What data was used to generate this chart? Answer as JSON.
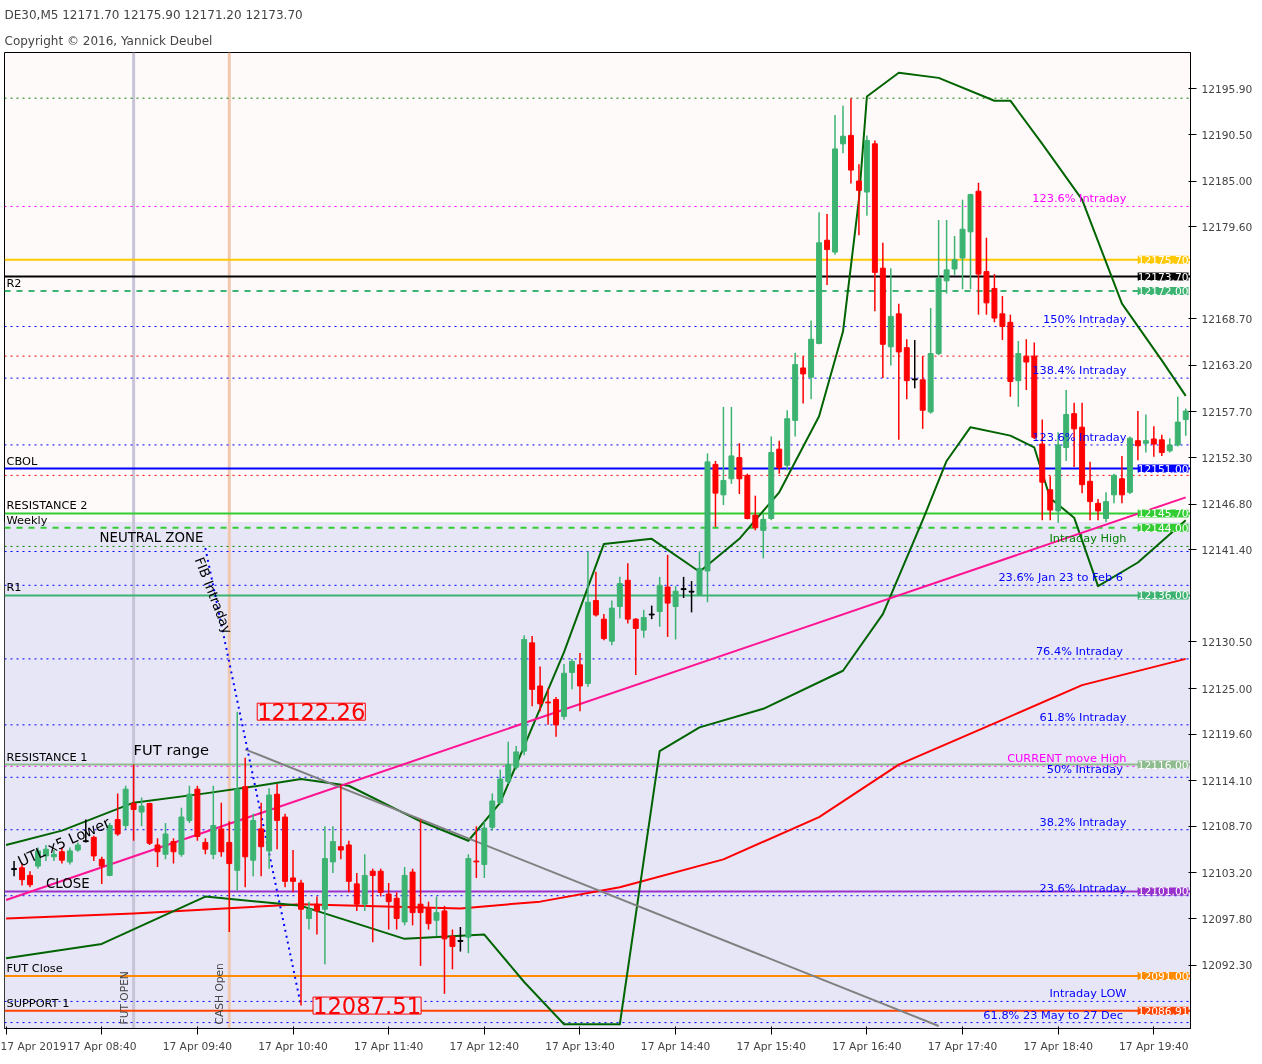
{
  "chart_data": {
    "type": "candlestick",
    "title": "DE30,M5  12171.70 12175.90 12171.20 12173.70",
    "subtitle": "Copyright © 2016, Yannick Deubel",
    "xlim": [
      "2019-04-17T07:39",
      "2019-04-17T20:03"
    ],
    "ylim": [
      12084.8,
      12200.2
    ],
    "xticks": [
      {
        "value": "2019-04-17T07:40",
        "label": "17 Apr 2019"
      },
      {
        "value": "2019-04-17T08:40",
        "label": "17 Apr 08:40"
      },
      {
        "value": "2019-04-17T09:40",
        "label": "17 Apr 09:40"
      },
      {
        "value": "2019-04-17T10:40",
        "label": "17 Apr 10:40"
      },
      {
        "value": "2019-04-17T11:40",
        "label": "17 Apr 11:40"
      },
      {
        "value": "2019-04-17T12:40",
        "label": "17 Apr 12:40"
      },
      {
        "value": "2019-04-17T13:40",
        "label": "17 Apr 13:40"
      },
      {
        "value": "2019-04-17T14:40",
        "label": "17 Apr 14:40"
      },
      {
        "value": "2019-04-17T15:40",
        "label": "17 Apr 15:40"
      },
      {
        "value": "2019-04-17T16:40",
        "label": "17 Apr 16:40"
      },
      {
        "value": "2019-04-17T17:40",
        "label": "17 Apr 17:40"
      },
      {
        "value": "2019-04-17T18:40",
        "label": "17 Apr 18:40"
      },
      {
        "value": "2019-04-17T19:40",
        "label": "17 Apr 19:40"
      }
    ],
    "yticks": [
      {
        "value": 12195.9,
        "label": "12195.90"
      },
      {
        "value": 12190.5,
        "label": "12190.50"
      },
      {
        "value": 12185.0,
        "label": "12185.00"
      },
      {
        "value": 12179.6,
        "label": "12179.60"
      },
      {
        "value": 12168.7,
        "label": "12168.70"
      },
      {
        "value": 12163.2,
        "label": "12163.20"
      },
      {
        "value": 12157.7,
        "label": "12157.70"
      },
      {
        "value": 12152.3,
        "label": "12152.30"
      },
      {
        "value": 12146.8,
        "label": "12146.80"
      },
      {
        "value": 12141.4,
        "label": "12141.40"
      },
      {
        "value": 12130.5,
        "label": "12130.50"
      },
      {
        "value": 12125.0,
        "label": "12125.00"
      },
      {
        "value": 12119.6,
        "label": "12119.60"
      },
      {
        "value": 12114.1,
        "label": "12114.10"
      },
      {
        "value": 12108.7,
        "label": "12108.70"
      },
      {
        "value": 12103.2,
        "label": "12103.20"
      },
      {
        "value": 12097.8,
        "label": "12097.80"
      },
      {
        "value": 12092.3,
        "label": "12092.30"
      }
    ],
    "bands": [
      {
        "axis": "y",
        "from": 12084.8,
        "to": 12144.7,
        "label": "NEUTRAL ZONE",
        "color": "#e6e6f7"
      }
    ],
    "ref_lines": [
      {
        "axis": "x",
        "value": "2019-04-17T09:00",
        "label": "FUT OPEN",
        "color": "#c8c4d8",
        "line_style": "solid"
      },
      {
        "axis": "x",
        "value": "2019-04-17T10:00",
        "label": "CASH Open",
        "color": "#f0c8b0",
        "line_style": "solid"
      },
      {
        "axis": "y",
        "value": 12194.8,
        "color": "#008000",
        "line_style": "dotted"
      },
      {
        "axis": "y",
        "value": 12182.0,
        "label": "123.6% Intraday",
        "color": "#ff00ff",
        "line_style": "dotted"
      },
      {
        "axis": "y",
        "value": 12175.7,
        "label": "12175.70",
        "color": "#ffc800",
        "line_style": "solid"
      },
      {
        "axis": "y",
        "value": 12173.7,
        "label": "12173.70",
        "color": "#000000",
        "line_style": "solid"
      },
      {
        "axis": "y",
        "value": 12172.0,
        "label": "12172.00",
        "color": "#3cb371",
        "line_style": "dashed"
      },
      {
        "axis": "y",
        "value": 12167.8,
        "label": "150% Intraday",
        "color": "#0000ff",
        "line_style": "dotted"
      },
      {
        "axis": "y",
        "value": 12164.3,
        "color": "#ff0000",
        "line_style": "dotted"
      },
      {
        "axis": "y",
        "value": 12161.7,
        "label": "138.4% Intraday",
        "color": "#0000ff",
        "line_style": "dotted"
      },
      {
        "axis": "y",
        "value": 12153.8,
        "label": "123.6% Intraday",
        "color": "#0000ff",
        "line_style": "dotted"
      },
      {
        "axis": "y",
        "value": 12151.0,
        "label": "12151.00",
        "color": "#0000ff",
        "line_style": "solid"
      },
      {
        "axis": "y",
        "value": 12150.2,
        "color": "#ff0000",
        "line_style": "dotted"
      },
      {
        "axis": "y",
        "value": 12145.7,
        "label": "12145.70",
        "color": "#32cd32",
        "line_style": "solid"
      },
      {
        "axis": "y",
        "value": 12144.0,
        "label": "12144.00",
        "color": "#32cd32",
        "line_style": "dashed"
      },
      {
        "axis": "y",
        "value": 12141.8,
        "label": "Intraday High",
        "color": "#008000",
        "line_style": "dotted"
      },
      {
        "axis": "y",
        "value": 12141.2,
        "color": "#0000ff",
        "line_style": "dotted"
      },
      {
        "axis": "y",
        "value": 12137.2,
        "label": "23.6%  Jan 23 to Feb 6",
        "color": "#0000ff",
        "line_style": "dotted"
      },
      {
        "axis": "y",
        "value": 12136.0,
        "label": "12136.00",
        "color": "#3cb371",
        "line_style": "solid"
      },
      {
        "axis": "y",
        "value": 12128.5,
        "label": "76.4%  Intraday",
        "color": "#0000ff",
        "line_style": "dotted"
      },
      {
        "axis": "y",
        "value": 12120.7,
        "label": "61.8% Intraday",
        "color": "#0000ff",
        "line_style": "dotted"
      },
      {
        "axis": "y",
        "value": 12116.0,
        "label": "12116.00",
        "color": "#8fbc8f",
        "line_style": "solid"
      },
      {
        "axis": "y",
        "value": 12115.8,
        "label": "CURRENT move High",
        "color": "#ff00ff",
        "line_style": "dotted"
      },
      {
        "axis": "y",
        "value": 12114.5,
        "label": "50%  Intraday",
        "color": "#0000ff",
        "line_style": "dotted"
      },
      {
        "axis": "y",
        "value": 12108.3,
        "label": "38.2% Intraday",
        "color": "#0000ff",
        "line_style": "dotted"
      },
      {
        "axis": "y",
        "value": 12101.0,
        "label": "12101.00",
        "color": "#9932cc",
        "line_style": "solid"
      },
      {
        "axis": "y",
        "value": 12100.5,
        "label": "23.6% Intraday",
        "color": "#0000ff",
        "line_style": "dotted"
      },
      {
        "axis": "y",
        "value": 12091.0,
        "label": "12091.00",
        "color": "#ff8c00",
        "line_style": "solid"
      },
      {
        "axis": "y",
        "value": 12088.0,
        "label": "Intraday LOW",
        "color": "#0000ff",
        "line_style": "dotted"
      },
      {
        "axis": "y",
        "value": 12086.91,
        "label": "12086.91",
        "color": "#ff4500",
        "line_style": "solid"
      },
      {
        "axis": "y",
        "value": 12085.5,
        "label": "61.8%  23 May to 27 Dec",
        "color": "#0000ff",
        "line_style": "dotted"
      }
    ],
    "annotations": [
      {
        "text": "12122.26",
        "x": "2019-04-17T10:10",
        "y": 12122.26
      },
      {
        "text": "12087.51",
        "x": "2019-04-17T10:45",
        "y": 12087.51
      },
      {
        "text": "FIB Intraday",
        "x": "2019-04-17T09:50",
        "y": 12136.0
      },
      {
        "text": "FUT range",
        "x": "2019-04-17T09:00",
        "y": 12116.8
      },
      {
        "text": "UTL x5 Lower",
        "x": "2019-04-17T07:50",
        "y": 12103.6
      },
      {
        "text": "R2",
        "y": 12172.0
      },
      {
        "text": "CBOL",
        "y": 12151.0
      },
      {
        "text": "RESISTANCE 2",
        "y": 12145.7
      },
      {
        "text": "Weekly",
        "y": 12144.0
      },
      {
        "text": "R1",
        "y": 12136.0
      },
      {
        "text": "RESISTANCE 1",
        "y": 12116.0
      },
      {
        "text": "CLOSE",
        "x": "2019-04-17T08:05",
        "y": 12101.0
      },
      {
        "text": "FUT Close",
        "y": 12091.0
      },
      {
        "text": "SUPPORT 1",
        "y": 12086.91
      }
    ],
    "series": [
      {
        "type": "line",
        "color": "#ff0000",
        "x": [
          "2019-04-17T07:40",
          "2019-04-17T09:00",
          "2019-04-17T10:45",
          "2019-04-17T12:25",
          "2019-04-17T13:15",
          "2019-04-17T14:05",
          "2019-04-17T15:10",
          "2019-04-17T16:10",
          "2019-04-17T17:00",
          "2019-04-17T18:05",
          "2019-04-17T18:55",
          "2019-04-17T20:00"
        ],
        "values": [
          12097.8,
          12098.4,
          12099.5,
          12099.0,
          12099.8,
          12101.5,
          12104.8,
          12109.8,
          12116.0,
          12121.3,
          12125.4,
          12128.5
        ]
      },
      {
        "type": "line",
        "color": "#006400",
        "x": [
          "2019-04-17T07:40",
          "2019-04-17T08:15",
          "2019-04-17T09:00",
          "2019-04-17T09:45",
          "2019-04-17T10:15",
          "2019-04-17T10:45",
          "2019-04-17T11:15",
          "2019-04-17T12:00",
          "2019-04-17T12:30",
          "2019-04-17T12:50",
          "2019-04-17T13:30",
          "2019-04-17T13:55",
          "2019-04-17T14:25",
          "2019-04-17T14:55",
          "2019-04-17T15:20",
          "2019-04-17T15:45",
          "2019-04-17T16:10",
          "2019-04-17T16:25",
          "2019-04-17T16:35",
          "2019-04-17T16:40",
          "2019-04-17T17:00",
          "2019-04-17T17:25",
          "2019-04-17T18:00",
          "2019-04-17T18:10",
          "2019-04-17T18:30",
          "2019-04-17T18:55",
          "2019-04-17T19:20",
          "2019-04-17T19:45",
          "2019-04-17T20:00"
        ],
        "values": [
          12106.5,
          12108.2,
          12111.5,
          12112.6,
          12113.4,
          12114.3,
          12113.5,
          12109.3,
          12107.0,
          12111.5,
          12129.3,
          12142.1,
          12142.7,
          12138.8,
          12142.7,
          12148.2,
          12157.2,
          12167.2,
          12182.8,
          12195.0,
          12197.8,
          12197.2,
          12194.5,
          12194.5,
          12189.4,
          12182.8,
          12170.5,
          12163.8,
          12159.6
        ]
      },
      {
        "type": "line",
        "color": "#006400",
        "x": [
          "2019-04-17T07:40",
          "2019-04-17T08:40",
          "2019-04-17T09:45",
          "2019-04-17T10:45",
          "2019-04-17T11:50",
          "2019-04-17T12:40",
          "2019-04-17T13:05",
          "2019-04-17T13:30",
          "2019-04-17T14:05",
          "2019-04-17T14:30",
          "2019-04-17T14:55",
          "2019-04-17T15:35",
          "2019-04-17T16:25",
          "2019-04-17T16:50",
          "2019-04-17T17:15",
          "2019-04-17T17:30",
          "2019-04-17T17:45",
          "2019-04-17T18:10",
          "2019-04-17T18:25",
          "2019-04-17T18:35",
          "2019-04-17T18:50",
          "2019-04-17T19:05",
          "2019-04-17T19:30",
          "2019-04-17T20:00"
        ],
        "values": [
          12093.1,
          12094.8,
          12100.4,
          12099.3,
          12095.4,
          12095.9,
          12090.3,
          12085.3,
          12085.3,
          12117.6,
          12120.4,
          12122.6,
          12127.1,
          12133.8,
          12144.9,
          12151.9,
          12155.9,
          12154.9,
          12153.5,
          12147.5,
          12145.2,
          12137.1,
          12139.9,
          12144.9
        ]
      },
      {
        "type": "line",
        "color": "#ff1493",
        "x": [
          "2019-04-17T07:40",
          "2019-04-17T20:00"
        ],
        "values": [
          12100.0,
          12147.6
        ]
      },
      {
        "type": "line",
        "color": "#808080",
        "x": [
          "2019-04-17T10:10",
          "2019-04-17T17:25"
        ],
        "values": [
          12117.8,
          12085.1
        ]
      },
      {
        "type": "line",
        "color": "#0000ff",
        "line_style": "dotted",
        "x": [
          "2019-04-17T09:45",
          "2019-04-17T10:45"
        ],
        "values": [
          12141.6,
          12087.5
        ]
      },
      {
        "x": [
          "2019-04-17T07:45",
          "2019-04-17T07:50",
          "2019-04-17T07:55",
          "2019-04-17T08:00",
          "2019-04-17T08:05",
          "2019-04-17T08:10",
          "2019-04-17T08:15",
          "2019-04-17T08:20",
          "2019-04-17T08:25",
          "2019-04-17T08:30",
          "2019-04-17T08:35",
          "2019-04-17T08:40",
          "2019-04-17T08:45",
          "2019-04-17T08:50",
          "2019-04-17T08:55",
          "2019-04-17T09:00",
          "2019-04-17T09:05",
          "2019-04-17T09:10",
          "2019-04-17T09:15",
          "2019-04-17T09:20",
          "2019-04-17T09:25",
          "2019-04-17T09:30",
          "2019-04-17T09:35",
          "2019-04-17T09:40",
          "2019-04-17T09:45",
          "2019-04-17T09:50",
          "2019-04-17T09:55",
          "2019-04-17T10:00",
          "2019-04-17T10:05",
          "2019-04-17T10:10",
          "2019-04-17T10:15",
          "2019-04-17T10:20",
          "2019-04-17T10:25",
          "2019-04-17T10:30",
          "2019-04-17T10:35",
          "2019-04-17T10:40",
          "2019-04-17T10:45",
          "2019-04-17T10:50",
          "2019-04-17T10:55",
          "2019-04-17T11:00",
          "2019-04-17T11:05",
          "2019-04-17T11:10",
          "2019-04-17T11:15",
          "2019-04-17T11:20",
          "2019-04-17T11:25",
          "2019-04-17T11:30",
          "2019-04-17T11:35",
          "2019-04-17T11:40",
          "2019-04-17T11:45",
          "2019-04-17T11:50",
          "2019-04-17T11:55",
          "2019-04-17T12:00",
          "2019-04-17T12:05",
          "2019-04-17T12:10",
          "2019-04-17T12:15",
          "2019-04-17T12:20",
          "2019-04-17T12:25",
          "2019-04-17T12:30",
          "2019-04-17T12:35",
          "2019-04-17T12:40",
          "2019-04-17T12:45",
          "2019-04-17T12:50",
          "2019-04-17T12:55",
          "2019-04-17T13:00",
          "2019-04-17T13:05",
          "2019-04-17T13:10",
          "2019-04-17T13:15",
          "2019-04-17T13:20",
          "2019-04-17T13:25",
          "2019-04-17T13:30",
          "2019-04-17T13:35",
          "2019-04-17T13:40",
          "2019-04-17T13:45",
          "2019-04-17T13:50",
          "2019-04-17T13:55",
          "2019-04-17T14:00",
          "2019-04-17T14:05",
          "2019-04-17T14:10",
          "2019-04-17T14:15",
          "2019-04-17T14:20",
          "2019-04-17T14:25",
          "2019-04-17T14:30",
          "2019-04-17T14:35",
          "2019-04-17T14:40",
          "2019-04-17T14:45",
          "2019-04-17T14:50",
          "2019-04-17T14:55",
          "2019-04-17T15:00",
          "2019-04-17T15:05",
          "2019-04-17T15:10",
          "2019-04-17T15:15",
          "2019-04-17T15:20",
          "2019-04-17T15:25",
          "2019-04-17T15:30",
          "2019-04-17T15:35",
          "2019-04-17T15:40",
          "2019-04-17T15:45",
          "2019-04-17T15:50",
          "2019-04-17T15:55",
          "2019-04-17T16:00",
          "2019-04-17T16:05",
          "2019-04-17T16:10",
          "2019-04-17T16:15",
          "2019-04-17T16:20",
          "2019-04-17T16:25",
          "2019-04-17T16:30",
          "2019-04-17T16:35",
          "2019-04-17T16:40",
          "2019-04-17T16:45",
          "2019-04-17T16:50",
          "2019-04-17T16:55",
          "2019-04-17T17:00",
          "2019-04-17T17:05",
          "2019-04-17T17:10",
          "2019-04-17T17:15",
          "2019-04-17T17:20",
          "2019-04-17T17:25",
          "2019-04-17T17:30",
          "2019-04-17T17:35",
          "2019-04-17T17:40",
          "2019-04-17T17:45",
          "2019-04-17T17:50",
          "2019-04-17T17:55",
          "2019-04-17T18:00",
          "2019-04-17T18:05",
          "2019-04-17T18:10",
          "2019-04-17T18:15",
          "2019-04-17T18:20",
          "2019-04-17T18:25",
          "2019-04-17T18:30",
          "2019-04-17T18:35",
          "2019-04-17T18:40",
          "2019-04-17T18:45",
          "2019-04-17T18:50",
          "2019-04-17T18:55",
          "2019-04-17T19:00",
          "2019-04-17T19:05",
          "2019-04-17T19:10",
          "2019-04-17T19:15",
          "2019-04-17T19:20",
          "2019-04-17T19:25",
          "2019-04-17T19:30",
          "2019-04-17T19:35",
          "2019-04-17T19:40",
          "2019-04-17T19:45",
          "2019-04-17T19:50",
          "2019-04-17T19:55",
          "2019-04-17T20:00"
        ],
        "ohlc": [
          [
            12103.7,
            12104.6,
            12102.8,
            12103.6
          ],
          [
            12103.8,
            12104.3,
            12101.7,
            12102.4
          ],
          [
            12102.9,
            12103.4,
            12101.5,
            12101.8
          ],
          [
            12104.0,
            12106.2,
            12103.7,
            12105.8
          ],
          [
            12105.2,
            12106.5,
            12104.6,
            12106.0
          ],
          [
            12105.1,
            12105.9,
            12104.6,
            12105.4
          ],
          [
            12105.7,
            12106.2,
            12104.3,
            12104.7
          ],
          [
            12104.5,
            12106.2,
            12104.2,
            12105.8
          ],
          [
            12105.9,
            12106.8,
            12105.7,
            12106.5
          ],
          [
            12107.0,
            12109.5,
            12106.8,
            12106.9
          ],
          [
            12107.4,
            12107.6,
            12104.6,
            12105.2
          ],
          [
            12104.8,
            12105.1,
            12101.9,
            12104.0
          ],
          [
            12102.9,
            12109.1,
            12102.8,
            12108.8
          ],
          [
            12109.5,
            12112.6,
            12107.6,
            12107.8
          ],
          [
            12108.8,
            12113.5,
            12108.4,
            12113.1
          ],
          [
            12111.4,
            12116.0,
            12107.0,
            12110.7
          ],
          [
            12110.4,
            12112.1,
            12108.7,
            12111.1
          ],
          [
            12111.4,
            12111.5,
            12106.5,
            12106.7
          ],
          [
            12106.5,
            12107.3,
            12103.9,
            12105.7
          ],
          [
            12105.4,
            12109.1,
            12104.8,
            12107.8
          ],
          [
            12106.9,
            12107.3,
            12104.3,
            12105.7
          ],
          [
            12105.4,
            12110.9,
            12105.1,
            12109.8
          ],
          [
            12109.4,
            12113.5,
            12109.1,
            12112.5
          ],
          [
            12113.1,
            12113.5,
            12107.0,
            12107.5
          ],
          [
            12106.8,
            12107.3,
            12105.4,
            12106.0
          ],
          [
            12105.4,
            12113.5,
            12104.8,
            12108.8
          ],
          [
            12108.4,
            12111.5,
            12105.1,
            12105.7
          ],
          [
            12106.8,
            12109.3,
            12096.2,
            12104.3
          ],
          [
            12103.5,
            12122.26,
            12101.1,
            12113.1
          ],
          [
            12113.4,
            12116.8,
            12101.5,
            12105.1
          ],
          [
            12104.7,
            12110.2,
            12102.8,
            12109.4
          ],
          [
            12108.4,
            12111.5,
            12102.8,
            12106.3
          ],
          [
            12105.8,
            12113.2,
            12103.7,
            12112.4
          ],
          [
            12112.5,
            12113.7,
            12106.0,
            12109.4
          ],
          [
            12109.8,
            12110.2,
            12101.5,
            12102.2
          ],
          [
            12102.6,
            12105.9,
            12100.9,
            12102.2
          ],
          [
            12102.0,
            12102.4,
            12087.51,
            12098.9
          ],
          [
            12097.8,
            12099.8,
            12096.5,
            12098.9
          ],
          [
            12099.5,
            12100.4,
            12095.9,
            12098.7
          ],
          [
            12098.9,
            12108.7,
            12092.4,
            12104.9
          ],
          [
            12104.5,
            12108.7,
            12103.2,
            12106.9
          ],
          [
            12106.3,
            12113.6,
            12104.8,
            12105.9
          ],
          [
            12106.5,
            12107.0,
            12100.9,
            12102.2
          ],
          [
            12101.9,
            12103.2,
            12098.7,
            12099.5
          ],
          [
            12099.5,
            12105.4,
            12098.7,
            12102.9
          ],
          [
            12103.4,
            12103.7,
            12095.0,
            12102.9
          ],
          [
            12103.4,
            12103.7,
            12100.4,
            12100.9
          ],
          [
            12100.7,
            12102.0,
            12096.5,
            12099.8
          ],
          [
            12100.2,
            12100.9,
            12096.5,
            12097.8
          ],
          [
            12097.4,
            12103.9,
            12097.0,
            12102.9
          ],
          [
            12103.3,
            12103.7,
            12097.0,
            12098.5
          ],
          [
            12099.5,
            12109.5,
            12092.2,
            12098.5
          ],
          [
            12099.0,
            12099.8,
            12096.5,
            12097.2
          ],
          [
            12097.6,
            12100.4,
            12095.7,
            12098.5
          ],
          [
            12098.7,
            12099.3,
            12088.9,
            12095.4
          ],
          [
            12095.7,
            12096.5,
            12091.8,
            12094.5
          ],
          [
            12095.2,
            12096.8,
            12093.9,
            12095.1
          ],
          [
            12095.6,
            12105.4,
            12093.7,
            12104.9
          ],
          [
            12104.6,
            12108.7,
            12102.6,
            12104.5
          ],
          [
            12104.2,
            12109.3,
            12102.6,
            12108.5
          ],
          [
            12108.6,
            12112.6,
            12108.2,
            12111.7
          ],
          [
            12111.5,
            12115.4,
            12111.3,
            12114.3
          ],
          [
            12114.0,
            12118.7,
            12113.7,
            12116.0
          ],
          [
            12115.7,
            12118.2,
            12115.4,
            12117.5
          ],
          [
            12117.6,
            12131.3,
            12117.1,
            12130.8
          ],
          [
            12130.4,
            12131.2,
            12122.9,
            12124.9
          ],
          [
            12125.3,
            12127.6,
            12122.3,
            12123.2
          ],
          [
            12123.4,
            12125.0,
            12120.7,
            12123.3
          ],
          [
            12123.7,
            12124.0,
            12119.3,
            12120.7
          ],
          [
            12121.7,
            12127.9,
            12121.3,
            12126.8
          ],
          [
            12126.9,
            12128.5,
            12124.9,
            12128.2
          ],
          [
            12127.8,
            12129.2,
            12122.3,
            12125.3
          ],
          [
            12125.6,
            12141.2,
            12125.2,
            12135.2
          ],
          [
            12135.4,
            12138.8,
            12133.5,
            12133.7
          ],
          [
            12133.2,
            12133.8,
            12130.7,
            12130.9
          ],
          [
            12130.6,
            12135.4,
            12130.1,
            12134.5
          ],
          [
            12134.7,
            12138.2,
            12133.3,
            12137.4
          ],
          [
            12137.8,
            12139.8,
            12132.7,
            12133.2
          ],
          [
            12133.2,
            12133.3,
            12126.6,
            12132.1
          ],
          [
            12131.9,
            12134.3,
            12131.0,
            12133.4
          ],
          [
            12133.8,
            12134.8,
            12133.2,
            12133.7
          ],
          [
            12134.1,
            12138.2,
            12132.3,
            12137.2
          ],
          [
            12137.0,
            12140.8,
            12131.1,
            12135.1
          ],
          [
            12134.7,
            12137.1,
            12130.8,
            12136.5
          ],
          [
            12136.8,
            12138.2,
            12135.7,
            12136.7
          ],
          [
            12136.5,
            12137.7,
            12134.0,
            12136.4
          ],
          [
            12136.1,
            12141.2,
            12136.0,
            12139.2
          ],
          [
            12138.9,
            12152.8,
            12135.2,
            12151.8
          ],
          [
            12151.5,
            12151.9,
            12144.1,
            12148.1
          ],
          [
            12147.9,
            12158.3,
            12146.7,
            12149.6
          ],
          [
            12149.8,
            12158.3,
            12149.2,
            12152.5
          ],
          [
            12152.3,
            12154.0,
            12148.0,
            12149.8
          ],
          [
            12150.2,
            12150.4,
            12145.0,
            12145.1
          ],
          [
            12145.5,
            12147.8,
            12143.7,
            12144.0
          ],
          [
            12143.7,
            12145.6,
            12140.4,
            12145.0
          ],
          [
            12145.1,
            12154.8,
            12144.9,
            12152.9
          ],
          [
            12153.3,
            12154.3,
            12150.4,
            12151.1
          ],
          [
            12151.4,
            12157.9,
            12150.8,
            12156.9
          ],
          [
            12156.7,
            12164.7,
            12154.8,
            12163.3
          ],
          [
            12162.9,
            12164.3,
            12158.7,
            12162.2
          ],
          [
            12161.8,
            12168.5,
            12159.2,
            12166.3
          ],
          [
            12165.8,
            12181.3,
            12165.7,
            12177.7
          ],
          [
            12178.0,
            12181.1,
            12172.7,
            12176.9
          ],
          [
            12176.6,
            12192.8,
            12176.3,
            12188.8
          ],
          [
            12189.4,
            12193.9,
            12188.3,
            12190.3
          ],
          [
            12190.4,
            12194.8,
            12184.7,
            12186.3
          ],
          [
            12185.0,
            12187.0,
            12178.6,
            12183.9
          ],
          [
            12183.7,
            12190.4,
            12180.9,
            12189.8
          ],
          [
            12189.4,
            12189.8,
            12169.6,
            12174.2
          ],
          [
            12174.7,
            12177.7,
            12161.7,
            12165.7
          ],
          [
            12165.4,
            12174.7,
            12163.2,
            12169.0
          ],
          [
            12169.3,
            12170.5,
            12154.4,
            12164.8
          ],
          [
            12165.3,
            12166.3,
            12159.2,
            12161.4
          ],
          [
            12161.6,
            12166.2,
            12160.5,
            12161.5
          ],
          [
            12161.5,
            12164.3,
            12155.7,
            12157.9
          ],
          [
            12157.7,
            12170.0,
            12157.5,
            12164.6
          ],
          [
            12164.6,
            12180.4,
            12164.4,
            12173.5
          ],
          [
            12173.2,
            12180.4,
            12171.7,
            12174.5
          ],
          [
            12174.6,
            12178.5,
            12173.9,
            12175.7
          ],
          [
            12175.9,
            12182.8,
            12172.2,
            12179.3
          ],
          [
            12179.0,
            12183.5,
            12172.2,
            12183.4
          ],
          [
            12183.8,
            12184.8,
            12169.2,
            12174.0
          ],
          [
            12174.3,
            12178.3,
            12169.2,
            12170.6
          ],
          [
            12172.3,
            12174.0,
            12168.3,
            12168.8
          ],
          [
            12169.3,
            12171.4,
            12166.2,
            12167.8
          ],
          [
            12168.3,
            12169.2,
            12159.5,
            12161.3
          ],
          [
            12161.4,
            12166.1,
            12158.3,
            12164.6
          ],
          [
            12164.3,
            12166.3,
            12160.3,
            12163.6
          ],
          [
            12164.3,
            12165.9,
            12154.5,
            12154.7
          ],
          [
            12153.9,
            12156.8,
            12144.9,
            12149.4
          ],
          [
            12148.5,
            12150.1,
            12144.9,
            12146.1
          ],
          [
            12146.0,
            12155.3,
            12144.6,
            12153.8
          ],
          [
            12153.5,
            12160.3,
            12151.9,
            12157.4
          ],
          [
            12157.5,
            12158.8,
            12151.2,
            12155.7
          ],
          [
            12155.9,
            12158.8,
            12148.1,
            12149.1
          ],
          [
            12149.5,
            12151.8,
            12144.9,
            12147.1
          ],
          [
            12146.9,
            12147.4,
            12144.9,
            12146.0
          ],
          [
            12145.1,
            12148.2,
            12144.7,
            12147.1
          ],
          [
            12147.9,
            12150.4,
            12146.9,
            12150.2
          ],
          [
            12149.8,
            12152.5,
            12146.9,
            12147.9
          ],
          [
            12148.2,
            12154.8,
            12148.0,
            12154.6
          ],
          [
            12154.3,
            12157.8,
            12152.0,
            12153.7
          ],
          [
            12154.0,
            12157.4,
            12152.9,
            12154.3
          ],
          [
            12154.5,
            12156.0,
            12152.4,
            12153.9
          ],
          [
            12154.4,
            12155.0,
            12152.5,
            12152.9
          ],
          [
            12153.1,
            12154.6,
            12152.9,
            12153.8
          ],
          [
            12153.8,
            12159.5,
            12153.6,
            12156.5
          ],
          [
            12156.8,
            12158.1,
            12154.9,
            12157.8
          ]
        ],
        "colors": [
          "#000000",
          "#ff0000",
          "#ff0000",
          "#3cb371",
          "#3cb371",
          "#3cb371",
          "#ff0000",
          "#3cb371",
          "#3cb371",
          "#000000",
          "#ff0000",
          "#ff0000",
          "#3cb371",
          "#ff0000",
          "#3cb371",
          "#ff0000",
          "#3cb371",
          "#ff0000",
          "#ff0000",
          "#3cb371",
          "#ff0000",
          "#3cb371",
          "#3cb371",
          "#ff0000",
          "#ff0000",
          "#3cb371",
          "#ff0000",
          "#ff0000",
          "#3cb371",
          "#ff0000",
          "#3cb371",
          "#ff0000",
          "#3cb371",
          "#ff0000",
          "#ff0000",
          "#ff0000",
          "#ff0000",
          "#3cb371",
          "#ff0000",
          "#3cb371",
          "#3cb371",
          "#ff0000",
          "#ff0000",
          "#ff0000",
          "#3cb371",
          "#ff0000",
          "#ff0000",
          "#ff0000",
          "#ff0000",
          "#3cb371",
          "#ff0000",
          "#ff0000",
          "#ff0000",
          "#3cb371",
          "#ff0000",
          "#ff0000",
          "#000000",
          "#3cb371",
          "#ff0000",
          "#3cb371",
          "#3cb371",
          "#3cb371",
          "#3cb371",
          "#3cb371",
          "#3cb371",
          "#ff0000",
          "#ff0000",
          "#ff0000",
          "#ff0000",
          "#3cb371",
          "#3cb371",
          "#ff0000",
          "#3cb371",
          "#ff0000",
          "#ff0000",
          "#3cb371",
          "#3cb371",
          "#ff0000",
          "#ff0000",
          "#3cb371",
          "#000000",
          "#3cb371",
          "#ff0000",
          "#3cb371",
          "#000000",
          "#000000",
          "#3cb371",
          "#3cb371",
          "#ff0000",
          "#3cb371",
          "#3cb371",
          "#ff0000",
          "#ff0000",
          "#ff0000",
          "#3cb371",
          "#3cb371",
          "#ff0000",
          "#3cb371",
          "#3cb371",
          "#ff0000",
          "#3cb371",
          "#3cb371",
          "#ff0000",
          "#3cb371",
          "#3cb371",
          "#ff0000",
          "#ff0000",
          "#3cb371",
          "#ff0000",
          "#ff0000",
          "#3cb371",
          "#ff0000",
          "#ff0000",
          "#000000",
          "#ff0000",
          "#3cb371",
          "#3cb371",
          "#3cb371",
          "#3cb371",
          "#3cb371",
          "#3cb371",
          "#ff0000",
          "#ff0000",
          "#ff0000",
          "#ff0000",
          "#ff0000",
          "#3cb371",
          "#ff0000",
          "#ff0000",
          "#ff0000",
          "#ff0000",
          "#3cb371",
          "#3cb371",
          "#ff0000",
          "#ff0000",
          "#ff0000",
          "#ff0000",
          "#3cb371",
          "#3cb371",
          "#ff0000",
          "#3cb371",
          "#ff0000",
          "#3cb371",
          "#ff0000",
          "#ff0000",
          "#3cb371",
          "#3cb371",
          "#3cb371"
        ]
      }
    ]
  }
}
